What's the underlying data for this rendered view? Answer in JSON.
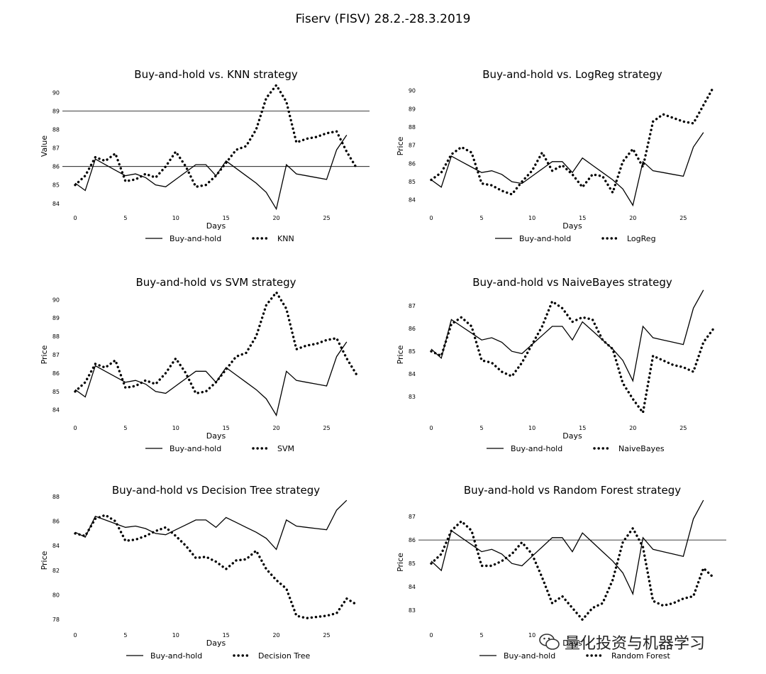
{
  "figure_title": "Fiserv (FISV) 28.2.-28.3.2019",
  "watermark": "量化投资与机器学习",
  "chart_data": [
    {
      "type": "line",
      "title": "Buy-and-hold vs. KNN strategy",
      "xlabel": "Days",
      "ylabel": "Value",
      "xlim": [
        0,
        28
      ],
      "ylim": [
        83.8,
        90.4
      ],
      "xticks": [
        0,
        5,
        10,
        15,
        20,
        25
      ],
      "yticks": [
        84,
        85,
        86,
        87,
        88,
        89,
        90
      ],
      "hlines": [
        86,
        89
      ],
      "series": [
        {
          "name": "Buy-and-hold",
          "style": "solid",
          "values": [
            85.1,
            84.7,
            86.4,
            86.1,
            85.8,
            85.5,
            85.6,
            85.4,
            85.0,
            84.9,
            85.3,
            85.7,
            86.1,
            86.1,
            85.5,
            86.3,
            85.9,
            85.5,
            85.1,
            84.6,
            83.7,
            86.1,
            85.6,
            85.5,
            85.4,
            85.3,
            86.9,
            87.7
          ]
        },
        {
          "name": "KNN",
          "style": "dotted",
          "values": [
            85.0,
            85.5,
            86.5,
            86.3,
            86.7,
            85.2,
            85.3,
            85.6,
            85.4,
            86.0,
            86.8,
            86.0,
            84.9,
            85.0,
            85.5,
            86.2,
            86.9,
            87.1,
            88.0,
            89.7,
            90.4,
            89.5,
            87.3,
            87.5,
            87.6,
            87.8,
            87.9,
            86.8,
            85.9
          ]
        }
      ]
    },
    {
      "type": "line",
      "title": "Buy-and-hold vs. LogReg strategy",
      "xlabel": "Days",
      "ylabel": "Price",
      "xlim": [
        0,
        28
      ],
      "ylim": [
        83.6,
        90.3
      ],
      "xticks": [
        0,
        5,
        10,
        15,
        20,
        25
      ],
      "yticks": [
        84,
        85,
        86,
        87,
        88,
        89,
        90
      ],
      "hlines": [],
      "series": [
        {
          "name": "Buy-and-hold",
          "style": "solid",
          "values": [
            85.1,
            84.7,
            86.4,
            86.1,
            85.8,
            85.5,
            85.6,
            85.4,
            85.0,
            84.9,
            85.3,
            85.7,
            86.1,
            86.1,
            85.5,
            86.3,
            85.9,
            85.5,
            85.1,
            84.6,
            83.7,
            86.1,
            85.6,
            85.5,
            85.4,
            85.3,
            86.9,
            87.7
          ]
        },
        {
          "name": "LogReg",
          "style": "dotted",
          "values": [
            85.1,
            85.5,
            86.5,
            86.9,
            86.6,
            84.9,
            84.8,
            84.5,
            84.3,
            85.0,
            85.6,
            86.6,
            85.6,
            85.9,
            85.4,
            84.7,
            85.4,
            85.3,
            84.4,
            86.1,
            86.8,
            85.8,
            88.3,
            88.7,
            88.5,
            88.3,
            88.2,
            89.2,
            90.2
          ]
        }
      ]
    },
    {
      "type": "line",
      "title": "Buy-and-hold vs SVM strategy",
      "xlabel": "Days",
      "ylabel": "Price",
      "xlim": [
        0,
        28
      ],
      "ylim": [
        83.6,
        90.4
      ],
      "xticks": [
        0,
        5,
        10,
        15,
        20,
        25
      ],
      "yticks": [
        84,
        85,
        86,
        87,
        88,
        89,
        90
      ],
      "hlines": [],
      "series": [
        {
          "name": "Buy-and-hold",
          "style": "solid",
          "values": [
            85.1,
            84.7,
            86.4,
            86.1,
            85.8,
            85.5,
            85.6,
            85.4,
            85.0,
            84.9,
            85.3,
            85.7,
            86.1,
            86.1,
            85.5,
            86.3,
            85.9,
            85.5,
            85.1,
            84.6,
            83.7,
            86.1,
            85.6,
            85.5,
            85.4,
            85.3,
            86.9,
            87.7
          ]
        },
        {
          "name": "SVM",
          "style": "dotted",
          "values": [
            85.0,
            85.5,
            86.5,
            86.3,
            86.7,
            85.2,
            85.3,
            85.6,
            85.4,
            86.0,
            86.8,
            86.0,
            84.9,
            85.0,
            85.5,
            86.2,
            86.9,
            87.1,
            88.0,
            89.7,
            90.4,
            89.5,
            87.3,
            87.5,
            87.6,
            87.8,
            87.9,
            86.8,
            85.9
          ]
        }
      ]
    },
    {
      "type": "line",
      "title": "Buy-and-hold vs NaiveBayes strategy",
      "xlabel": "Days",
      "ylabel": "Price",
      "xlim": [
        0,
        28
      ],
      "ylim": [
        82.1,
        87.6
      ],
      "xticks": [
        0,
        5,
        10,
        15,
        20,
        25
      ],
      "yticks": [
        83,
        84,
        85,
        86,
        87
      ],
      "hlines": [],
      "series": [
        {
          "name": "Buy-and-hold",
          "style": "solid",
          "values": [
            85.1,
            84.7,
            86.4,
            86.1,
            85.8,
            85.5,
            85.6,
            85.4,
            85.0,
            84.9,
            85.3,
            85.7,
            86.1,
            86.1,
            85.5,
            86.3,
            85.9,
            85.5,
            85.1,
            84.6,
            83.7,
            86.1,
            85.6,
            85.5,
            85.4,
            85.3,
            86.9,
            87.7
          ]
        },
        {
          "name": "NaiveBayes",
          "style": "dotted",
          "values": [
            85.0,
            84.8,
            86.2,
            86.5,
            86.1,
            84.6,
            84.5,
            84.1,
            83.9,
            84.5,
            85.3,
            86.1,
            87.2,
            86.9,
            86.3,
            86.5,
            86.4,
            85.5,
            85.1,
            83.6,
            82.9,
            82.3,
            84.8,
            84.6,
            84.4,
            84.3,
            84.1,
            85.4,
            86.0
          ]
        }
      ]
    },
    {
      "type": "line",
      "title": "Buy-and-hold vs Decision Tree strategy",
      "xlabel": "Days",
      "ylabel": "Price",
      "xlim": [
        0,
        28
      ],
      "ylim": [
        77.6,
        88.0
      ],
      "xticks": [
        0,
        5,
        10,
        15,
        20,
        25
      ],
      "yticks": [
        78,
        80,
        82,
        84,
        86,
        88
      ],
      "hlines": [],
      "series": [
        {
          "name": "Buy-and-hold",
          "style": "solid",
          "values": [
            85.1,
            84.7,
            86.4,
            86.1,
            85.8,
            85.5,
            85.6,
            85.4,
            85.0,
            84.9,
            85.3,
            85.7,
            86.1,
            86.1,
            85.5,
            86.3,
            85.9,
            85.5,
            85.1,
            84.6,
            83.7,
            86.1,
            85.6,
            85.5,
            85.4,
            85.3,
            86.9,
            87.7
          ]
        },
        {
          "name": "Decision Tree",
          "style": "dotted",
          "values": [
            85.0,
            84.8,
            86.2,
            86.5,
            86.0,
            84.4,
            84.5,
            84.8,
            85.2,
            85.5,
            84.8,
            84.0,
            83.0,
            83.1,
            82.7,
            82.1,
            82.8,
            82.9,
            83.6,
            82.1,
            81.2,
            80.5,
            78.3,
            78.1,
            78.2,
            78.3,
            78.5,
            79.7,
            79.2
          ]
        }
      ]
    },
    {
      "type": "line",
      "title": "Buy-and-hold vs Random Forest strategy",
      "xlabel": "Days",
      "ylabel": "Price",
      "xlim": [
        0,
        28
      ],
      "ylim": [
        82.4,
        87.7
      ],
      "xticks": [
        0,
        5,
        10
      ],
      "yticks": [
        83,
        84,
        85,
        86,
        87
      ],
      "hlines": [
        86
      ],
      "series": [
        {
          "name": "Buy-and-hold",
          "style": "solid",
          "values": [
            85.1,
            84.7,
            86.4,
            86.1,
            85.8,
            85.5,
            85.6,
            85.4,
            85.0,
            84.9,
            85.3,
            85.7,
            86.1,
            86.1,
            85.5,
            86.3,
            85.9,
            85.5,
            85.1,
            84.6,
            83.7,
            86.1,
            85.6,
            85.5,
            85.4,
            85.3,
            86.9,
            87.7
          ]
        },
        {
          "name": "Random Forest",
          "style": "dotted",
          "values": [
            85.0,
            85.4,
            86.4,
            86.8,
            86.4,
            84.9,
            84.9,
            85.1,
            85.4,
            85.9,
            85.4,
            84.4,
            83.3,
            83.6,
            83.1,
            82.6,
            83.1,
            83.3,
            84.3,
            85.9,
            86.5,
            85.7,
            83.4,
            83.2,
            83.3,
            83.5,
            83.6,
            84.8,
            84.4
          ]
        }
      ]
    }
  ]
}
